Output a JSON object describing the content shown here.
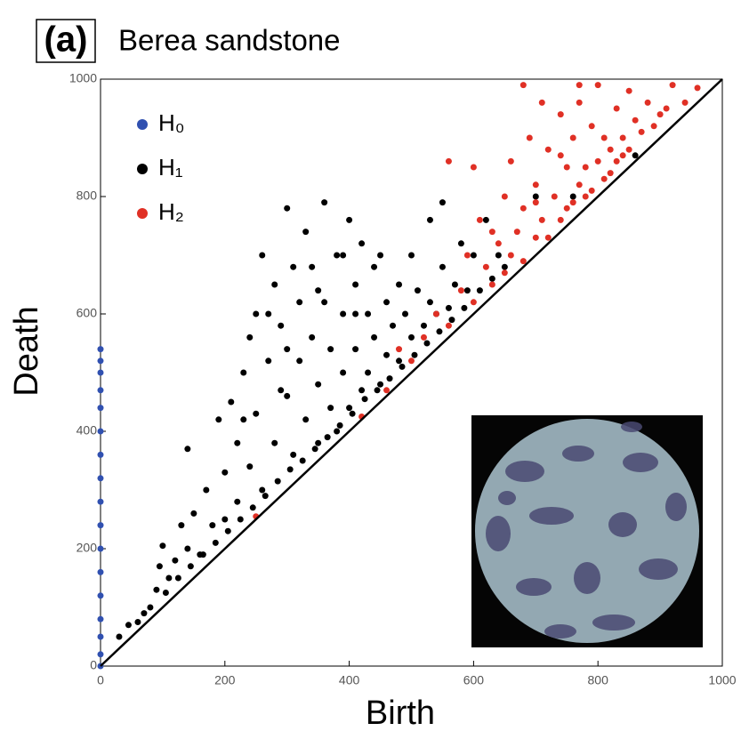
{
  "chart_data": {
    "type": "scatter",
    "panel_label": "(a)",
    "title": "Berea sandstone",
    "x_label": "Birth",
    "y_label": "Death",
    "xlim": [
      0,
      1000
    ],
    "ylim": [
      0,
      1000
    ],
    "xticks": [
      0,
      200,
      400,
      600,
      800,
      1000
    ],
    "yticks": [
      0,
      200,
      400,
      600,
      800,
      1000
    ],
    "diagonal": true,
    "legend": "upper left",
    "series": [
      {
        "name": "H₀",
        "color": "#3050b0",
        "x": [
          0,
          0,
          0,
          0,
          0,
          0,
          0,
          0,
          0,
          0,
          0,
          0,
          0,
          0,
          0,
          0,
          0
        ],
        "values": [
          0,
          20,
          50,
          80,
          120,
          160,
          200,
          240,
          280,
          320,
          360,
          400,
          440,
          470,
          500,
          520,
          540
        ]
      },
      {
        "name": "H₁",
        "color": "#000000",
        "x": [
          60,
          80,
          90,
          95,
          100,
          110,
          120,
          130,
          140,
          140,
          150,
          160,
          170,
          180,
          190,
          200,
          200,
          210,
          220,
          220,
          230,
          240,
          250,
          250,
          260,
          260,
          270,
          280,
          280,
          290,
          300,
          300,
          310,
          310,
          320,
          320,
          330,
          330,
          340,
          340,
          350,
          350,
          360,
          360,
          370,
          370,
          380,
          380,
          390,
          390,
          400,
          400,
          410,
          410,
          420,
          420,
          430,
          430,
          440,
          440,
          450,
          450,
          460,
          460,
          470,
          480,
          480,
          490,
          500,
          500,
          510,
          520,
          530,
          530,
          540,
          550,
          550,
          560,
          570,
          580,
          590,
          600,
          610,
          620,
          630,
          640,
          650,
          700,
          760,
          860,
          30,
          45,
          70,
          105,
          125,
          145,
          165,
          185,
          205,
          225,
          245,
          265,
          285,
          305,
          325,
          345,
          365,
          385,
          405,
          425,
          445,
          465,
          485,
          505,
          525,
          545,
          565,
          585,
          230,
          270,
          290,
          240,
          350,
          390,
          410,
          300
        ],
        "values": [
          75,
          100,
          130,
          170,
          205,
          150,
          180,
          240,
          200,
          370,
          260,
          190,
          300,
          240,
          420,
          330,
          250,
          450,
          380,
          280,
          500,
          340,
          600,
          430,
          300,
          700,
          520,
          650,
          380,
          580,
          780,
          460,
          680,
          360,
          620,
          520,
          740,
          420,
          560,
          680,
          380,
          480,
          790,
          620,
          540,
          440,
          700,
          400,
          600,
          500,
          760,
          440,
          650,
          540,
          720,
          470,
          600,
          500,
          680,
          560,
          700,
          480,
          620,
          530,
          580,
          650,
          520,
          600,
          560,
          700,
          640,
          580,
          760,
          620,
          600,
          790,
          680,
          610,
          650,
          720,
          640,
          700,
          640,
          760,
          660,
          700,
          680,
          800,
          800,
          870,
          50,
          70,
          90,
          125,
          150,
          170,
          190,
          210,
          230,
          250,
          270,
          290,
          315,
          335,
          350,
          370,
          390,
          410,
          430,
          455,
          470,
          490,
          510,
          530,
          550,
          570,
          590,
          610,
          420,
          600,
          470,
          560,
          640,
          700,
          600,
          540
        ]
      },
      {
        "name": "H₂",
        "color": "#e03025",
        "x": [
          250,
          420,
          460,
          480,
          500,
          520,
          540,
          560,
          580,
          590,
          600,
          610,
          620,
          630,
          640,
          650,
          650,
          660,
          660,
          670,
          680,
          680,
          690,
          700,
          700,
          710,
          710,
          720,
          720,
          730,
          740,
          740,
          750,
          750,
          760,
          760,
          770,
          770,
          780,
          780,
          790,
          790,
          800,
          800,
          810,
          810,
          820,
          820,
          830,
          830,
          840,
          840,
          850,
          860,
          870,
          880,
          890,
          900,
          910,
          920,
          940,
          960,
          680,
          770,
          560,
          600,
          630,
          700,
          740,
          850
        ],
        "values": [
          255,
          425,
          470,
          540,
          520,
          560,
          600,
          580,
          640,
          700,
          620,
          760,
          680,
          650,
          720,
          800,
          670,
          860,
          700,
          740,
          690,
          780,
          900,
          730,
          820,
          960,
          760,
          880,
          730,
          800,
          940,
          760,
          850,
          780,
          900,
          790,
          820,
          960,
          850,
          800,
          920,
          810,
          990,
          860,
          830,
          900,
          880,
          840,
          950,
          860,
          900,
          870,
          880,
          930,
          910,
          960,
          920,
          940,
          950,
          990,
          960,
          985,
          990,
          990,
          860,
          850,
          740,
          790,
          870,
          980
        ]
      }
    ]
  }
}
